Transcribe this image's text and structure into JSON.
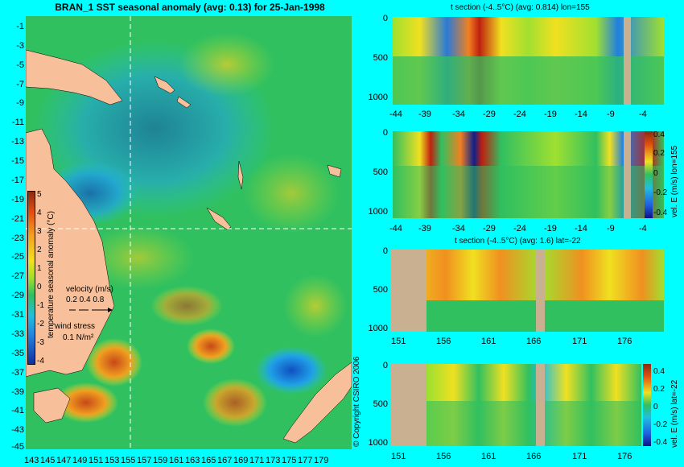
{
  "title": "BRAN_1 SST seasonal anomaly (avg: 0.13) for 25-Jan-1998",
  "map": {
    "lat_ticks": [
      "-1",
      "-3",
      "-5",
      "-7",
      "-9",
      "-11",
      "-13",
      "-15",
      "-17",
      "-19",
      "-21",
      "-23",
      "-25",
      "-27",
      "-29",
      "-31",
      "-33",
      "-35",
      "-37",
      "-39",
      "-41",
      "-43",
      "-45"
    ],
    "lon_ticks": [
      "143",
      "145",
      "147",
      "149",
      "151",
      "153",
      "155",
      "157",
      "159",
      "161",
      "163",
      "165",
      "167",
      "169",
      "171",
      "173",
      "175",
      "177",
      "179"
    ],
    "colorbar_ticks": [
      "5",
      "4",
      "3",
      "2",
      "1",
      "0",
      "-1",
      "-2",
      "-3",
      "-4"
    ],
    "colorbar_label": "temperature seasonal anomaly (°C)",
    "velocity_label": "velocity (m/s)",
    "velocity_scale": "0.2 0.4 0.8",
    "wind_label": "wind stress",
    "wind_scale": "0.1 N/m²",
    "copyright": "© Copyright CSIRO 2006",
    "colors": {
      "land": "#f7c09a",
      "ocean_green": "#2fc85a",
      "warm": "#d86a1a",
      "cool": "#2aa0e6"
    }
  },
  "panel1": {
    "title": "t section (-4..5°C) (avg: 0.814) lon=155",
    "yticks": [
      "0",
      "500",
      "1000"
    ],
    "xticks": [
      "-44",
      "-39",
      "-34",
      "-29",
      "-24",
      "-19",
      "-14",
      "-9",
      "-4"
    ]
  },
  "panel2": {
    "yticks": [
      "0",
      "500",
      "1000"
    ],
    "xticks": [
      "-44",
      "-39",
      "-34",
      "-29",
      "-24",
      "-19",
      "-14",
      "-9",
      "-4"
    ],
    "side_label": "vel. E (m/s) lon=155",
    "cb_ticks": [
      "0.4",
      "0.2",
      "0",
      "-0.2",
      "-0.4"
    ]
  },
  "panel3": {
    "title": "t section (-4..5°C) (avg: 1.6) lat=-22",
    "yticks": [
      "0",
      "500",
      "1000"
    ],
    "xticks": [
      "151",
      "156",
      "161",
      "166",
      "171",
      "176"
    ]
  },
  "panel4": {
    "yticks": [
      "0",
      "500",
      "1000"
    ],
    "xticks": [
      "151",
      "156",
      "161",
      "166",
      "171",
      "176"
    ],
    "side_label": "vel. E (m/s) lat=-22",
    "cb_ticks": [
      "0.4",
      "0.2",
      "0",
      "-0.2",
      "-0.4"
    ]
  }
}
